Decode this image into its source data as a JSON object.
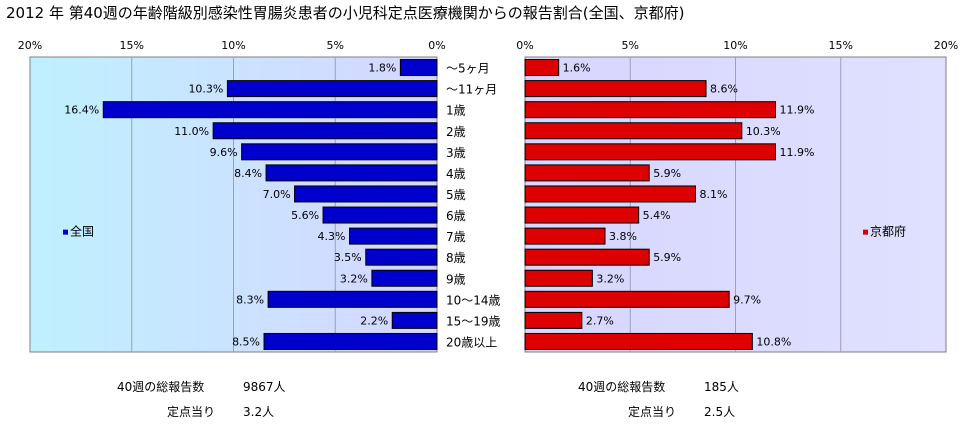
{
  "title": "2012 年 第40週の年齢階級別感染性胃腸炎患者の小児科定点医療機関からの報告割合(全国、京都府)",
  "chart_data": {
    "type": "bar",
    "orientation": "horizontal",
    "categories": [
      "～5ヶ月",
      "～11ヶ月",
      "1歳",
      "2歳",
      "3歳",
      "4歳",
      "5歳",
      "6歳",
      "7歳",
      "8歳",
      "9歳",
      "10～14歳",
      "15～19歳",
      "20歳以上"
    ],
    "xlim": [
      0,
      20
    ],
    "tick_labels": [
      "0%",
      "5%",
      "10%",
      "15%",
      "20%"
    ],
    "grid": true,
    "series": [
      {
        "name": "全国",
        "side": "left",
        "color": "#0000cc",
        "values": [
          1.8,
          10.3,
          16.4,
          11.0,
          9.6,
          8.4,
          7.0,
          5.6,
          4.3,
          3.5,
          3.2,
          8.3,
          2.2,
          8.5
        ],
        "labels": [
          "1.8%",
          "10.3%",
          "16.4%",
          "11.0%",
          "9.6%",
          "8.4%",
          "7.0%",
          "5.6%",
          "4.3%",
          "3.5%",
          "3.2%",
          "8.3%",
          "2.2%",
          "8.5%"
        ]
      },
      {
        "name": "京都府",
        "side": "right",
        "color": "#dd0000",
        "values": [
          1.6,
          8.6,
          11.9,
          10.3,
          11.9,
          5.9,
          8.1,
          5.4,
          3.8,
          5.9,
          3.2,
          9.7,
          2.7,
          10.8
        ],
        "labels": [
          "1.6%",
          "8.6%",
          "11.9%",
          "10.3%",
          "11.9%",
          "5.9%",
          "8.1%",
          "5.4%",
          "3.8%",
          "5.9%",
          "3.2%",
          "9.7%",
          "2.7%",
          "10.8%"
        ]
      }
    ]
  },
  "summary": {
    "national": {
      "reports_label": "40週の総報告数",
      "reports_value": "9867人",
      "per_site_label": "定点当り",
      "per_site_value": "3.2人"
    },
    "kyoto": {
      "reports_label": "40週の総報告数",
      "reports_value": "185人",
      "per_site_label": "定点当り",
      "per_site_value": "2.5人"
    }
  },
  "colors": {
    "plot_bg": "#d6dcff",
    "grid": "#9aa0b8",
    "frame": "#808080"
  }
}
